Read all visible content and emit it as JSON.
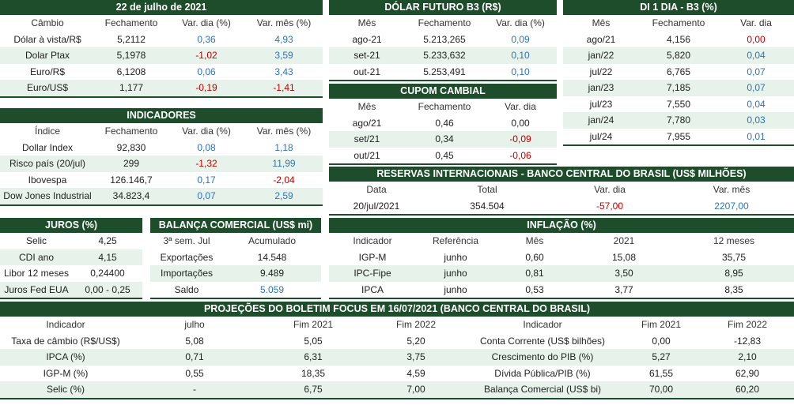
{
  "panels": {
    "cambio": {
      "title": "22 de julho de 2021",
      "header": [
        "Câmbio",
        "Fechamento",
        "Var. dia (%)",
        "Var. mês (%)"
      ],
      "rows": [
        [
          "Dólar à vista/R$",
          "5,2112",
          "0,36",
          "4,93"
        ],
        [
          "Dolar Ptax",
          "5,1978",
          "-1,02",
          "3,59"
        ],
        [
          "Euro/R$",
          "6,1208",
          "0,06",
          "3,43"
        ],
        [
          "Euro/US$",
          "1,177",
          "-0,19",
          "-1,41"
        ]
      ]
    },
    "indicadores": {
      "title": "INDICADORES",
      "header": [
        "Índice",
        "Fechamento",
        "Var. dia (%)",
        "Var. mês (%)"
      ],
      "rows": [
        [
          "Dollar Index",
          "92,830",
          "0,08",
          "1,18"
        ],
        [
          "Risco país (20/jul)",
          "299",
          "-1,32",
          "11,99"
        ],
        [
          "Ibovespa",
          "126.146,7",
          "0,17",
          "-2,04"
        ],
        [
          "Dow Jones Industrial",
          "34.823,4",
          "0,07",
          "2,59"
        ]
      ]
    },
    "dolar": {
      "title": "DÓLAR FUTURO B3 (R$)",
      "header": [
        "Mês",
        "Fechamento",
        "Var. dia (%)"
      ],
      "rows": [
        [
          "ago-21",
          "5.213,265",
          "0,09"
        ],
        [
          "set-21",
          "5.233,632",
          "0,10"
        ],
        [
          "out-21",
          "5.253,491",
          "0,10"
        ]
      ]
    },
    "cupom": {
      "title": "CUPOM CAMBIAL",
      "header": [
        "Mês",
        "Fechamento",
        "Var. dia"
      ],
      "rows": [
        [
          "ago/21",
          "0,46",
          "0,00"
        ],
        [
          "set/21",
          "0,34",
          "-0,09"
        ],
        [
          "out/21",
          "0,45",
          "-0,06"
        ]
      ]
    },
    "di": {
      "title": "DI 1 DIA - B3 (%)",
      "header": [
        "Mês",
        "Fechamento",
        "Var. dia"
      ],
      "rows": [
        [
          "ago/21",
          "4,156",
          "0,00"
        ],
        [
          "jan/22",
          "5,820",
          "0,04"
        ],
        [
          "jul/22",
          "6,765",
          "0,07"
        ],
        [
          "jan/23",
          "7,185",
          "0,07"
        ],
        [
          "jul/23",
          "7,550",
          "0,04"
        ],
        [
          "jan/24",
          "7,780",
          "0,03"
        ],
        [
          "jul/24",
          "7,955",
          "0,01"
        ]
      ]
    },
    "reservas": {
      "title": "RESERVAS INTERNACIONAIS - BANCO CENTRAL DO BRASIL (US$ MILHÕES)",
      "header": [
        "Data",
        "Total",
        "Var. dia",
        "Var. mês"
      ],
      "rows": [
        [
          "20/jul/2021",
          "354.504",
          "-57,00",
          "2207,00"
        ]
      ]
    },
    "juros": {
      "title": "JUROS (%)",
      "rows": [
        [
          "Selic",
          "4,25"
        ],
        [
          "CDI ano",
          "4,15"
        ],
        [
          "Libor 12 meses",
          "0,24400"
        ],
        [
          "Juros Fed EUA",
          "0,00 - 0,25"
        ]
      ]
    },
    "balanca": {
      "title": "BALANÇA COMERCIAL (US$ mi)",
      "header": [
        "3ª sem. Jul",
        "Acumulado"
      ],
      "rows": [
        [
          "Exportações",
          "14.548"
        ],
        [
          "Importações",
          "9.489"
        ],
        [
          "Saldo",
          "5.059"
        ]
      ]
    },
    "inflacao": {
      "title": "INFLAÇÃO (%)",
      "header": [
        "Indicador",
        "Referência",
        "Mês",
        "2021",
        "12 meses"
      ],
      "rows": [
        [
          "IGP-M",
          "junho",
          "0,60",
          "15,08",
          "35,75"
        ],
        [
          "IPC-Fipe",
          "junho",
          "0,81",
          "3,50",
          "8,95"
        ],
        [
          "IPCA",
          "junho",
          "0,53",
          "3,77",
          "8,35"
        ]
      ]
    },
    "focus": {
      "title": "PROJEÇÕES DO BOLETIM FOCUS EM 16/07/2021 (BANCO CENTRAL DO BRASIL)",
      "header": [
        "Indicador",
        "julho",
        "Fim 2021",
        "Fim 2022",
        "Indicador",
        "Fim 2021",
        "Fim 2022"
      ],
      "rows": [
        [
          "Taxa de câmbio (R$/US$)",
          "5,08",
          "5,05",
          "5,20",
          "Conta Corrente (US$ bilhões)",
          "0,00",
          "-12,83"
        ],
        [
          "IPCA (%)",
          "0,71",
          "6,31",
          "3,75",
          "Crescimento do PIB (%)",
          "5,27",
          "2,10"
        ],
        [
          "IGP-M (%)",
          "0,55",
          "18,35",
          "4,59",
          "Dívida Pública/PIB (%)",
          "61,55",
          "62,90"
        ],
        [
          "Selic (%)",
          "-",
          "6,75",
          "7,00",
          "Balança Comercial (US$ bi)",
          "70,00",
          "60,20"
        ]
      ]
    }
  }
}
